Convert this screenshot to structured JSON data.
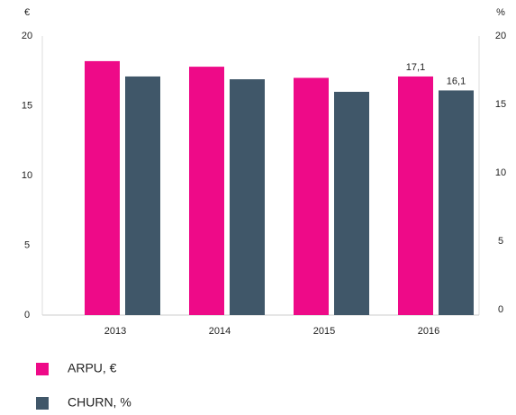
{
  "chart_data": {
    "type": "bar",
    "y_unit": "€",
    "y2_unit": "%",
    "categories": [
      "2013",
      "2014",
      "2015",
      "2016"
    ],
    "series": [
      {
        "name": "ARPU, €",
        "color": "#ee0a88",
        "values": [
          18.2,
          17.8,
          17.0,
          17.1
        ],
        "value_labels": [
          null,
          null,
          null,
          "17,1"
        ]
      },
      {
        "name": "CHURN, %",
        "color": "#405769",
        "values": [
          17.1,
          16.9,
          16.0,
          16.1
        ],
        "value_labels": [
          null,
          null,
          null,
          "16,1"
        ],
        "axis": "y2"
      }
    ],
    "ylim": [
      0,
      20
    ],
    "yticks": [
      0,
      5,
      10,
      15,
      20
    ],
    "y2lim": [
      0,
      20
    ],
    "y2ticks": [
      0,
      5,
      10,
      15,
      20
    ]
  }
}
